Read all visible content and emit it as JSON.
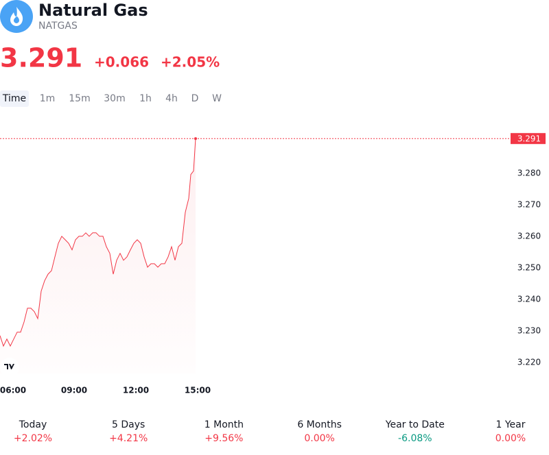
{
  "header": {
    "title": "Natural Gas",
    "symbol": "NATGAS",
    "price": "3.291",
    "change": "+0.066",
    "change_pct": "+2.05%"
  },
  "timeframes": {
    "items": [
      "Time",
      "1m",
      "15m",
      "30m",
      "1h",
      "4h",
      "D",
      "W"
    ],
    "active": 0
  },
  "chart_data": {
    "type": "line",
    "x": [
      324,
      334,
      344,
      354,
      364,
      374,
      384,
      394,
      404,
      414,
      424,
      434,
      444,
      454,
      464,
      474,
      484,
      494,
      504,
      514,
      524,
      534,
      544,
      554,
      564,
      574,
      584,
      594,
      604,
      614,
      624,
      634,
      644,
      654,
      664,
      674,
      684,
      694,
      704,
      714,
      724,
      734,
      744,
      754,
      764,
      774,
      784,
      794,
      804,
      814,
      824,
      834,
      844,
      854,
      864,
      874,
      880,
      888,
      894
    ],
    "series": [
      {
        "name": "NATGAS",
        "color": "#f23645",
        "values": [
          3.2285,
          3.2252,
          3.2274,
          3.2252,
          3.2274,
          3.2296,
          3.2296,
          3.2328,
          3.2372,
          3.2372,
          3.2361,
          3.2339,
          3.2426,
          3.2459,
          3.248,
          3.2491,
          3.2535,
          3.2578,
          3.26,
          3.2589,
          3.2578,
          3.2557,
          3.2589,
          3.26,
          3.26,
          3.2611,
          3.26,
          3.2611,
          3.2611,
          3.26,
          3.26,
          3.2567,
          3.2546,
          3.248,
          3.2524,
          3.2546,
          3.2524,
          3.2535,
          3.2557,
          3.2578,
          3.2589,
          3.2578,
          3.2535,
          3.2502,
          3.2513,
          3.2513,
          3.2502,
          3.2513,
          3.2513,
          3.2535,
          3.2567,
          3.2524,
          3.2567,
          3.2578,
          3.2676,
          3.272,
          3.2796,
          3.2807,
          3.291
        ]
      }
    ],
    "last_price": {
      "value": 3.291,
      "label": "3.291"
    },
    "xlim": [
      324,
      1804
    ],
    "ylim": [
      3.2165,
      3.298
    ],
    "xticks": [
      {
        "value": 360,
        "label": "06:00"
      },
      {
        "value": 540,
        "label": "09:00"
      },
      {
        "value": 720,
        "label": "12:00"
      },
      {
        "value": 900,
        "label": "15:00"
      }
    ],
    "yticks": [
      {
        "value": 3.22,
        "label": "3.220"
      },
      {
        "value": 3.23,
        "label": "3.230"
      },
      {
        "value": 3.24,
        "label": "3.240"
      },
      {
        "value": 3.25,
        "label": "3.250"
      },
      {
        "value": 3.26,
        "label": "3.260"
      },
      {
        "value": 3.27,
        "label": "3.270"
      },
      {
        "value": 3.28,
        "label": "3.280"
      }
    ]
  },
  "performance": [
    {
      "label": "Today",
      "value": "+2.02%",
      "color": "#f23645"
    },
    {
      "label": "5 Days",
      "value": "+4.21%",
      "color": "#f23645"
    },
    {
      "label": "1 Month",
      "value": "+9.56%",
      "color": "#f23645"
    },
    {
      "label": "6 Months",
      "value": "0.00%",
      "color": "#f23645"
    },
    {
      "label": "Year to Date",
      "value": "-6.08%",
      "color": "#089981"
    },
    {
      "label": "1 Year",
      "value": "0.00%",
      "color": "#f23645"
    }
  ]
}
